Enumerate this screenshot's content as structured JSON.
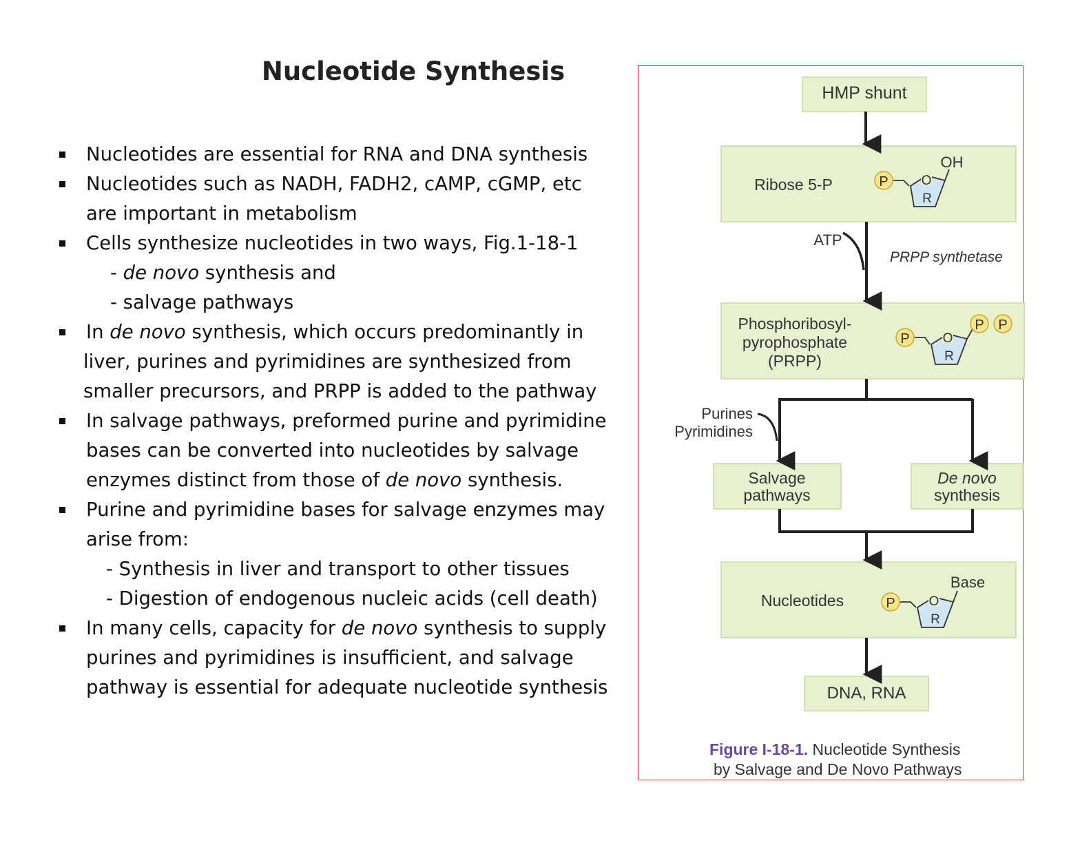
{
  "slide": {
    "title": "Nucleotide Synthesis",
    "text": {
      "b1": "Nucleotides are essential for RNA and DNA synthesis",
      "b2_l1": "Nucleotides such as NADH, FADH2, cAMP, cGMP, etc",
      "b2_l2": "are important in metabolism",
      "b3": "Cells synthesize nucleotides in two ways, Fig.1-18-1",
      "s1_pre": "- ",
      "s1_it": "de novo",
      "s1_post": " synthesis and",
      "s2": "- salvage pathways",
      "b4_pre": "In ",
      "b4_it": "de novo",
      "b4_post": " synthesis, which occurs predominantly in",
      "b4_l2": "liver, purines and pyrimidines are synthesized from",
      "b4_l3": "smaller precursors, and PRPP is added to the pathway",
      "b5_l1": "In salvage pathways, preformed purine and pyrimidine",
      "b5_l2": "bases can be converted into nucleotides by salvage",
      "b5_l3_pre": "enzymes distinct from those of ",
      "b5_l3_it": "de novo",
      "b5_l3_post": " synthesis.",
      "b6_l1": "Purine and pyrimidine bases for salvage enzymes may",
      "b6_l2": "arise from:",
      "s3": "- Synthesis in liver and transport to other tissues",
      "s4": "- Digestion of endogenous nucleic acids (cell death)",
      "b7_pre": "In many cells, capacity for ",
      "b7_it": "de novo",
      "b7_post": " synthesis to supply",
      "b7_l2": "purines and pyrimidines is insufficient, and salvage",
      "b7_l3": "pathway is essential for adequate nucleotide synthesis"
    }
  },
  "figure": {
    "hmp": "HMP shunt",
    "ribose": "Ribose 5-P",
    "oh": "OH",
    "p": "P",
    "r": "R",
    "o": "O",
    "atp": "ATP",
    "enzyme": "PRPP synthetase",
    "prpp_l1": "Phosphoribosyl-",
    "prpp_l2": "pyrophosphate",
    "prpp_l3": "(PRPP)",
    "purines": "Purines",
    "pyrimidines": "Pyrimidines",
    "salvage_l1": "Salvage",
    "salvage_l2": "pathways",
    "denovo_l1": "De novo",
    "denovo_l2": "synthesis",
    "nucleotides": "Nucleotides",
    "base": "Base",
    "dna": "DNA, RNA",
    "caption_label": "Figure I-18-1.",
    "caption_l1": " Nucleotide Synthesis",
    "caption_l2": "by Salvage and De Novo Pathways"
  },
  "colors": {
    "box_fill": "#e8f1cf",
    "box_stroke": "#c9d9a0",
    "phosphate_fill": "#f7e58a",
    "ring_fill": "#cfe6f2",
    "caption_label": "#6b4a9a",
    "frame": "#d42a2a"
  }
}
